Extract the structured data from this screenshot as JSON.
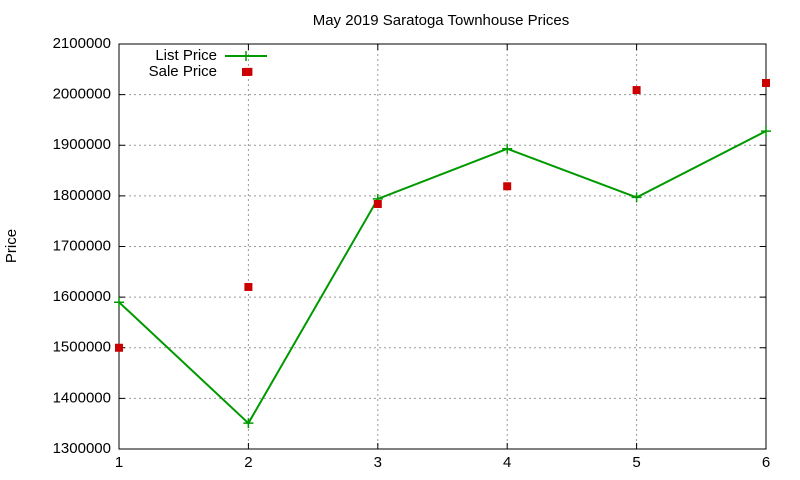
{
  "chart_data": {
    "type": "line",
    "title": "May 2019 Saratoga Townhouse Prices",
    "ylabel": "Price",
    "xlim": [
      1,
      6
    ],
    "xticks": [
      1,
      2,
      3,
      4,
      5,
      6
    ],
    "ylim": [
      1300000,
      2100000
    ],
    "yticks": [
      1300000,
      1400000,
      1500000,
      1600000,
      1700000,
      1800000,
      1900000,
      2000000,
      2100000
    ],
    "grid": true,
    "legend": "top-left",
    "series": [
      {
        "name": "List Price",
        "type": "line",
        "color": "#009900",
        "x": [
          1,
          2,
          3,
          4,
          5,
          6
        ],
        "values": [
          1590000,
          1351000,
          1794000,
          1893000,
          1797000,
          1928000
        ]
      },
      {
        "name": "Sale Price",
        "type": "scatter",
        "color": "#cc0000",
        "x": [
          1,
          2,
          2,
          3,
          4,
          5,
          6
        ],
        "values": [
          1500000,
          1620000,
          2045000,
          1784000,
          1819000,
          2009000,
          2023000
        ]
      }
    ]
  }
}
